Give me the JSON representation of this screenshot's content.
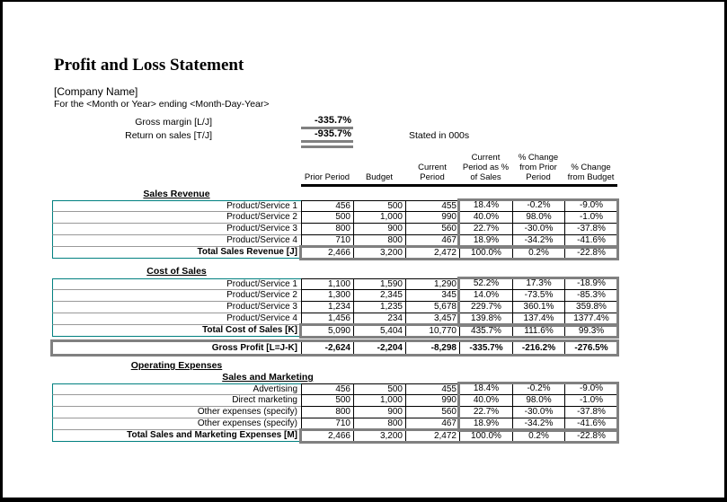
{
  "colors": {
    "accent_teal": "#008080",
    "total_border_gray": "#808080",
    "grid_black": "#000000"
  },
  "header": {
    "title": "Profit and Loss Statement",
    "company": "[Company Name]",
    "period_line": "For the <Month or Year> ending <Month-Day-Year>",
    "stated_in": "Stated in 000s"
  },
  "metrics": {
    "gross_margin": {
      "label": "Gross margin  [L/J]",
      "value": "-335.7%"
    },
    "return_on_sales": {
      "label": "Return on sales  [T/J]",
      "value": "-935.7%"
    }
  },
  "table": {
    "columns": [
      "Prior Period",
      "Budget",
      "Current Period",
      "Current Period as % of Sales",
      "% Change from Prior Period",
      "% Change from Budget"
    ],
    "sections": [
      {
        "heading": "Sales Revenue",
        "rows": [
          {
            "label": "Product/Service 1",
            "values": [
              "456",
              "500",
              "455",
              "18.4%",
              "-0.2%",
              "-9.0%"
            ]
          },
          {
            "label": "Product/Service 2",
            "values": [
              "500",
              "1,000",
              "990",
              "40.0%",
              "98.0%",
              "-1.0%"
            ]
          },
          {
            "label": "Product/Service 3",
            "values": [
              "800",
              "900",
              "560",
              "22.7%",
              "-30.0%",
              "-37.8%"
            ]
          },
          {
            "label": "Product/Service 4",
            "values": [
              "710",
              "800",
              "467",
              "18.9%",
              "-34.2%",
              "-41.6%"
            ]
          }
        ],
        "total": {
          "label": "Total Sales Revenue  [J]",
          "values": [
            "2,466",
            "3,200",
            "2,472",
            "100.0%",
            "0.2%",
            "-22.8%"
          ]
        }
      },
      {
        "heading": "Cost of Sales",
        "rows": [
          {
            "label": "Product/Service 1",
            "values": [
              "1,100",
              "1,590",
              "1,290",
              "52.2%",
              "17.3%",
              "-18.9%"
            ]
          },
          {
            "label": "Product/Service 2",
            "values": [
              "1,300",
              "2,345",
              "345",
              "14.0%",
              "-73.5%",
              "-85.3%"
            ]
          },
          {
            "label": "Product/Service 3",
            "values": [
              "1,234",
              "1,235",
              "5,678",
              "229.7%",
              "360.1%",
              "359.8%"
            ]
          },
          {
            "label": "Product/Service 4",
            "values": [
              "1,456",
              "234",
              "3,457",
              "139.8%",
              "137.4%",
              "1377.4%"
            ]
          }
        ],
        "total": {
          "label": "Total Cost of Sales  [K]",
          "values": [
            "5,090",
            "5,404",
            "10,770",
            "435.7%",
            "111.6%",
            "99.3%"
          ]
        }
      },
      {
        "heading": "Operating Expenses",
        "subheading": "Sales and Marketing",
        "rows": [
          {
            "label": "Advertising",
            "values": [
              "456",
              "500",
              "455",
              "18.4%",
              "-0.2%",
              "-9.0%"
            ]
          },
          {
            "label": "Direct marketing",
            "values": [
              "500",
              "1,000",
              "990",
              "40.0%",
              "98.0%",
              "-1.0%"
            ]
          },
          {
            "label": "Other expenses (specify)",
            "values": [
              "800",
              "900",
              "560",
              "22.7%",
              "-30.0%",
              "-37.8%"
            ]
          },
          {
            "label": "Other expenses (specify)",
            "values": [
              "710",
              "800",
              "467",
              "18.9%",
              "-34.2%",
              "-41.6%"
            ]
          }
        ],
        "total": {
          "label": "Total Sales and Marketing Expenses  [M]",
          "values": [
            "2,466",
            "3,200",
            "2,472",
            "100.0%",
            "0.2%",
            "-22.8%"
          ]
        }
      }
    ],
    "gross_profit": {
      "label": "Gross Profit  [L=J-K]",
      "values": [
        "-2,624",
        "-2,204",
        "-8,298",
        "-335.7%",
        "-216.2%",
        "-276.5%"
      ]
    }
  }
}
